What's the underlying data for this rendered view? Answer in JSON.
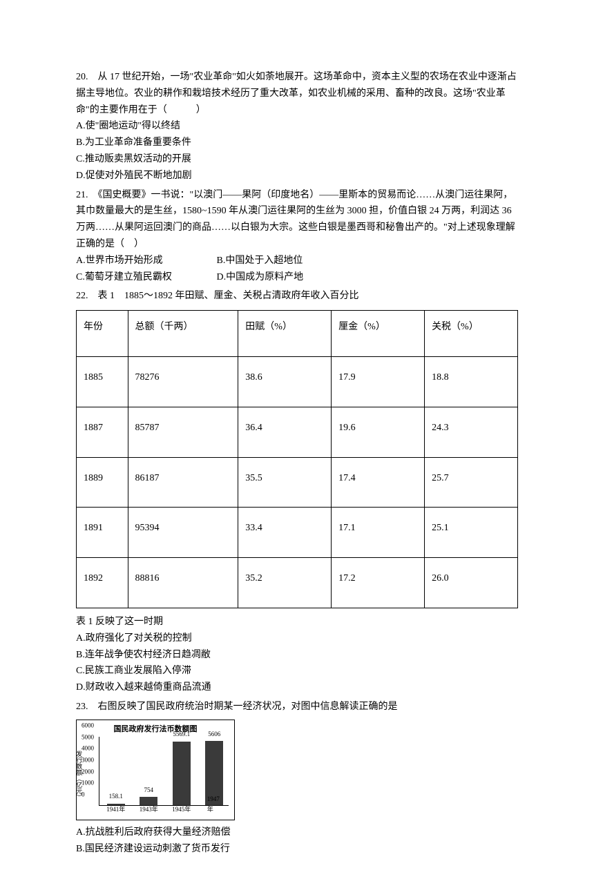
{
  "q20": {
    "number": "20.",
    "text": "从 17 世纪开始，一场\"农业革命\"如火如荼地展开。这场革命中，资本主义型的农场在农业中逐渐占据主导地位。农业的耕作和栽培技术经历了重大改革，如农业机械的采用、畜种的改良。这场\"农业革命\"的主要作用在于（　　　）",
    "optA": "A.使\"圈地运动\"得以终结",
    "optB": "B.为工业革命准备重要条件",
    "optC": "C.推动贩卖黑奴活动的开展",
    "optD": "D.促使对外殖民不断地加剧"
  },
  "q21": {
    "number": "21.",
    "text": "《国史概要》一书说：\"以澳门——果阿（印度地名）——里斯本的贸易而论……从澳门运往果阿，其巾数量最大的是生丝，1580~1590 年从澳门运往果阿的生丝为 3000 担，价值白银 24 万两，利润达 36 万两……从果阿运回澳门的商品……以白银为大宗。这些白银是墨西哥和秘鲁出产的。\"对上述现象理解正确的是（　）",
    "optA": "A.世界市场开始形成",
    "optB": "B.中国处于入超地位",
    "optC": "C.葡萄牙建立殖民霸权",
    "optD": "D.中国成为原料产地"
  },
  "q22": {
    "number": "22.",
    "text": "表 1　1885～1892 年田赋、厘金、关税占清政府年收入百分比",
    "table": {
      "headers": [
        "年份",
        "总额（千两）",
        "田赋（%）",
        "厘金（%）",
        "关税（%）"
      ],
      "rows": [
        [
          "1885",
          "78276",
          "38.6",
          "17.9",
          "18.8"
        ],
        [
          "1887",
          "85787",
          "36.4",
          "19.6",
          "24.3"
        ],
        [
          "1889",
          "86187",
          "35.5",
          "17.4",
          "25.7"
        ],
        [
          "1891",
          "95394",
          "33.4",
          "17.1",
          "25.1"
        ],
        [
          "1892",
          "88816",
          "35.2",
          "17.2",
          "26.0"
        ]
      ]
    },
    "afterTable": "表 1 反映了这一时期",
    "optA": "A.政府强化了对关税的控制",
    "optB": "B.连年战争使农村经济日趋凋敝",
    "optC": "C.民族工商业发展陷入停滞",
    "optD": "D.财政收入越来越倚重商品流通"
  },
  "q23": {
    "number": "23.",
    "text": "右图反映了国民政府统治时期某一经济状况，对图中信息解读正确的是",
    "chart": {
      "title": "国民政府发行法币数额图",
      "ylabel": "发行数额（亿元）",
      "ymax": 6000,
      "yticks": [
        0,
        1000,
        2000,
        3000,
        4000,
        5000,
        6000
      ],
      "categories": [
        "1941年",
        "1943年",
        "1945年",
        "1947年"
      ],
      "values": [
        158.1,
        754,
        5569.1,
        5606
      ],
      "bar_color": "#3a3a3a",
      "background_color": "#ffffff"
    },
    "optA": "A.抗战胜利后政府获得大量经济赔偿",
    "optB": "B.国民经济建设运动刺激了货币发行"
  }
}
